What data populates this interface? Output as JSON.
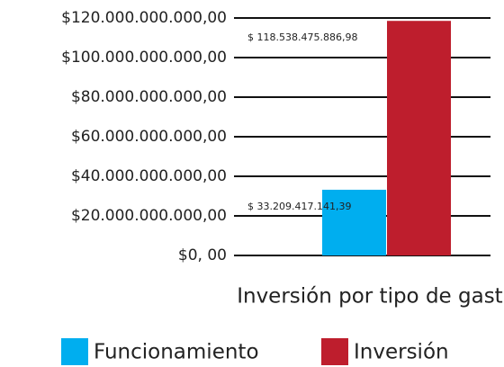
{
  "chart_data": {
    "type": "bar",
    "x_label": "Inversión por tipo de gasto",
    "series": [
      {
        "name": "Funcionamiento",
        "color": "#00aeef",
        "values": [
          33209417141.39
        ],
        "value_labels": [
          "$ 33.209.417.141,39"
        ]
      },
      {
        "name": "Inversión",
        "color": "#be1e2d",
        "values": [
          118538475886.98
        ],
        "value_labels": [
          "$ 118.538.475.886,98"
        ]
      }
    ],
    "ylim": [
      0,
      120000000000
    ],
    "yticks": [
      {
        "value": 0,
        "label": "$0, 00"
      },
      {
        "value": 20000000000,
        "label": "$20.000.000.000,00"
      },
      {
        "value": 40000000000,
        "label": "$40.000.000.000,00"
      },
      {
        "value": 60000000000,
        "label": "$60.000.000.000,00"
      },
      {
        "value": 80000000000,
        "label": "$80.000.000.000,00"
      },
      {
        "value": 100000000000,
        "label": "$100.000.000.000,00"
      },
      {
        "value": 120000000000,
        "label": "$120.000.000.000,00"
      }
    ],
    "grid": true,
    "legend": "bottom"
  }
}
